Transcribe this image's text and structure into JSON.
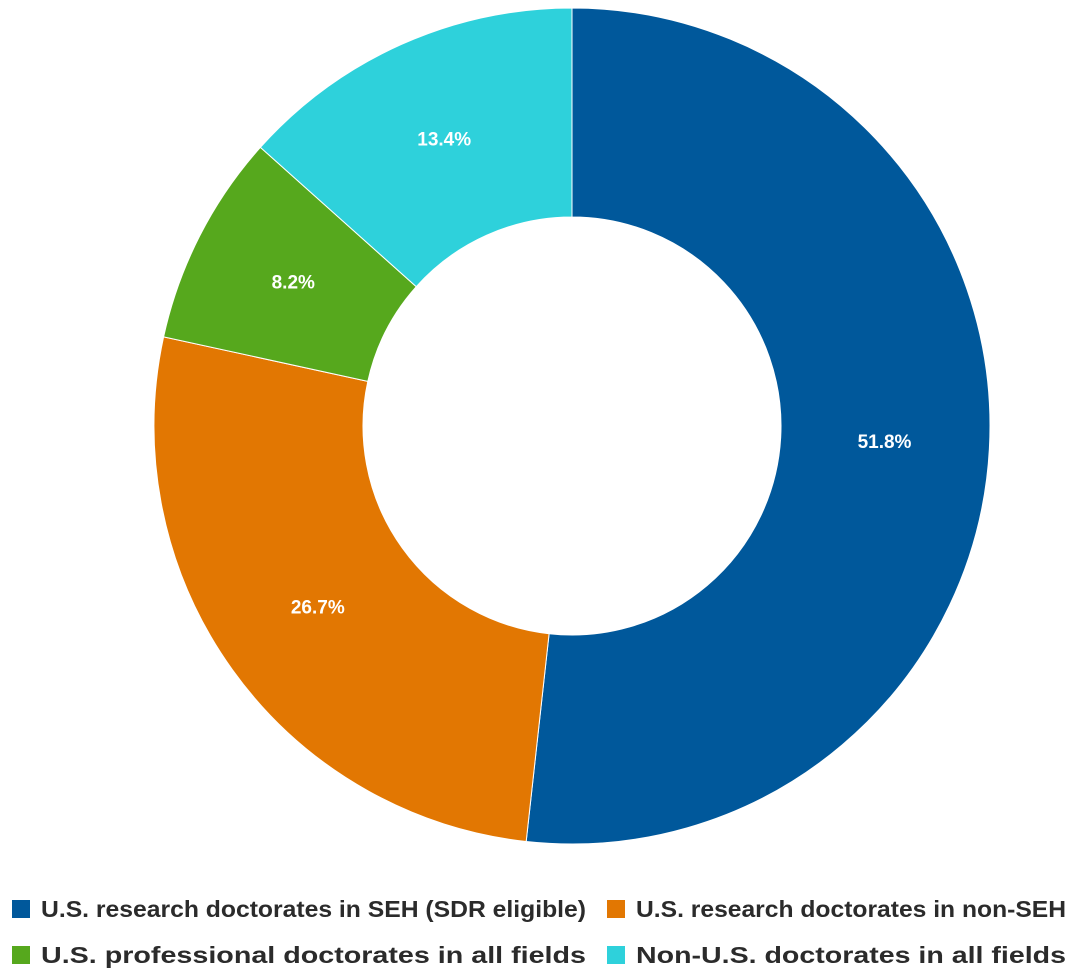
{
  "chart_data": {
    "type": "pie",
    "donut": true,
    "title": "",
    "legend_position": "bottom",
    "categories": [
      "U.S. research doctorates in SEH (SDR eligible)",
      "U.S. research doctorates in non-SEH",
      "U.S. professional doctorates in all fields",
      "Non-U.S. doctorates in all fields"
    ],
    "values": [
      51.8,
      26.7,
      8.2,
      13.4
    ],
    "data_labels": [
      "51.8%",
      "26.7%",
      "8.2%",
      "13.4%"
    ],
    "colors": [
      "#00589b",
      "#e27702",
      "#56a81d",
      "#2ed1db"
    ],
    "start_angle_deg": 0,
    "direction": "clockwise"
  }
}
